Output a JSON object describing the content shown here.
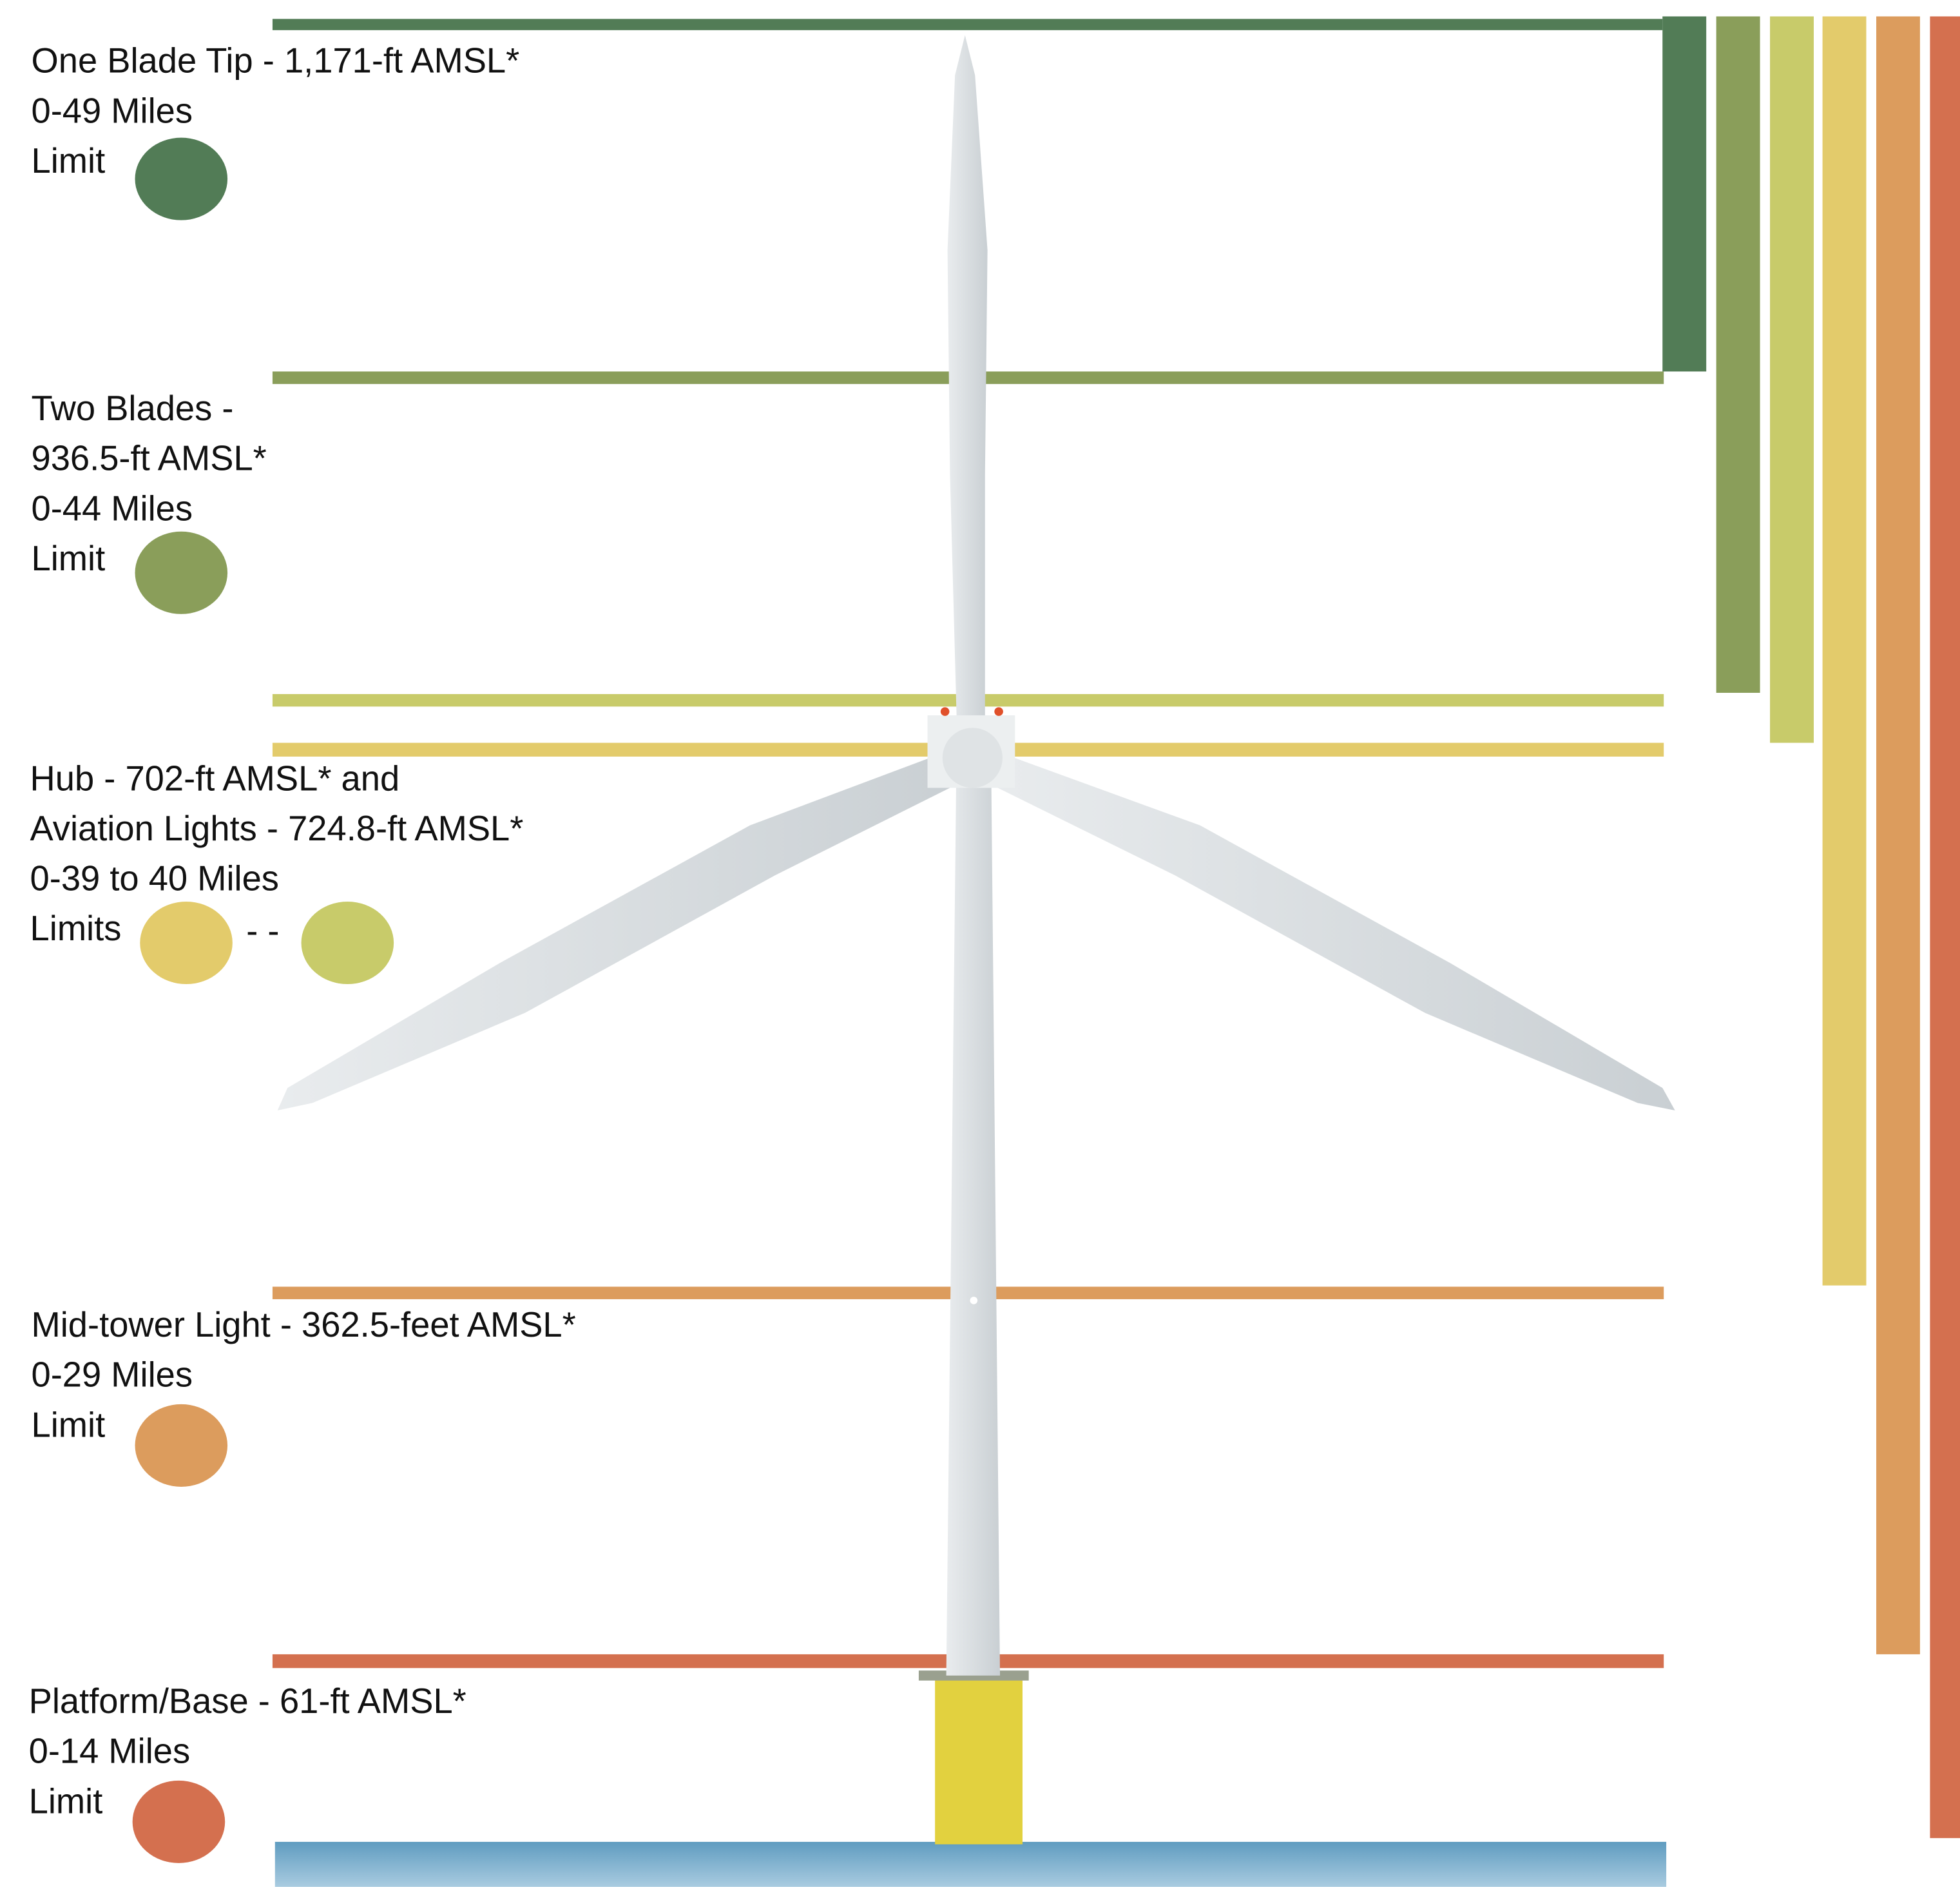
{
  "labels": [
    {
      "lines": [
        "One Blade Tip - 1,171-ft AMSL*",
        "0-49 Miles",
        "Limit"
      ]
    },
    {
      "lines": [
        "Two Blades -",
        "936.5-ft AMSL*",
        "0-44 Miles",
        "Limit"
      ]
    },
    {
      "lines": [
        "Hub - 702-ft AMSL* and",
        "Aviation Lights - 724.8-ft AMSL*",
        "0-39 to 40 Miles",
        "Limits"
      ]
    },
    {
      "lines": [
        "Mid-tower Light - 362.5-feet AMSL*",
        "0-29 Miles",
        "Limit"
      ]
    },
    {
      "lines": [
        "Platform/Base - 61-ft AMSL*",
        "0-14 Miles",
        "Limit"
      ]
    }
  ],
  "separator": "- -"
}
